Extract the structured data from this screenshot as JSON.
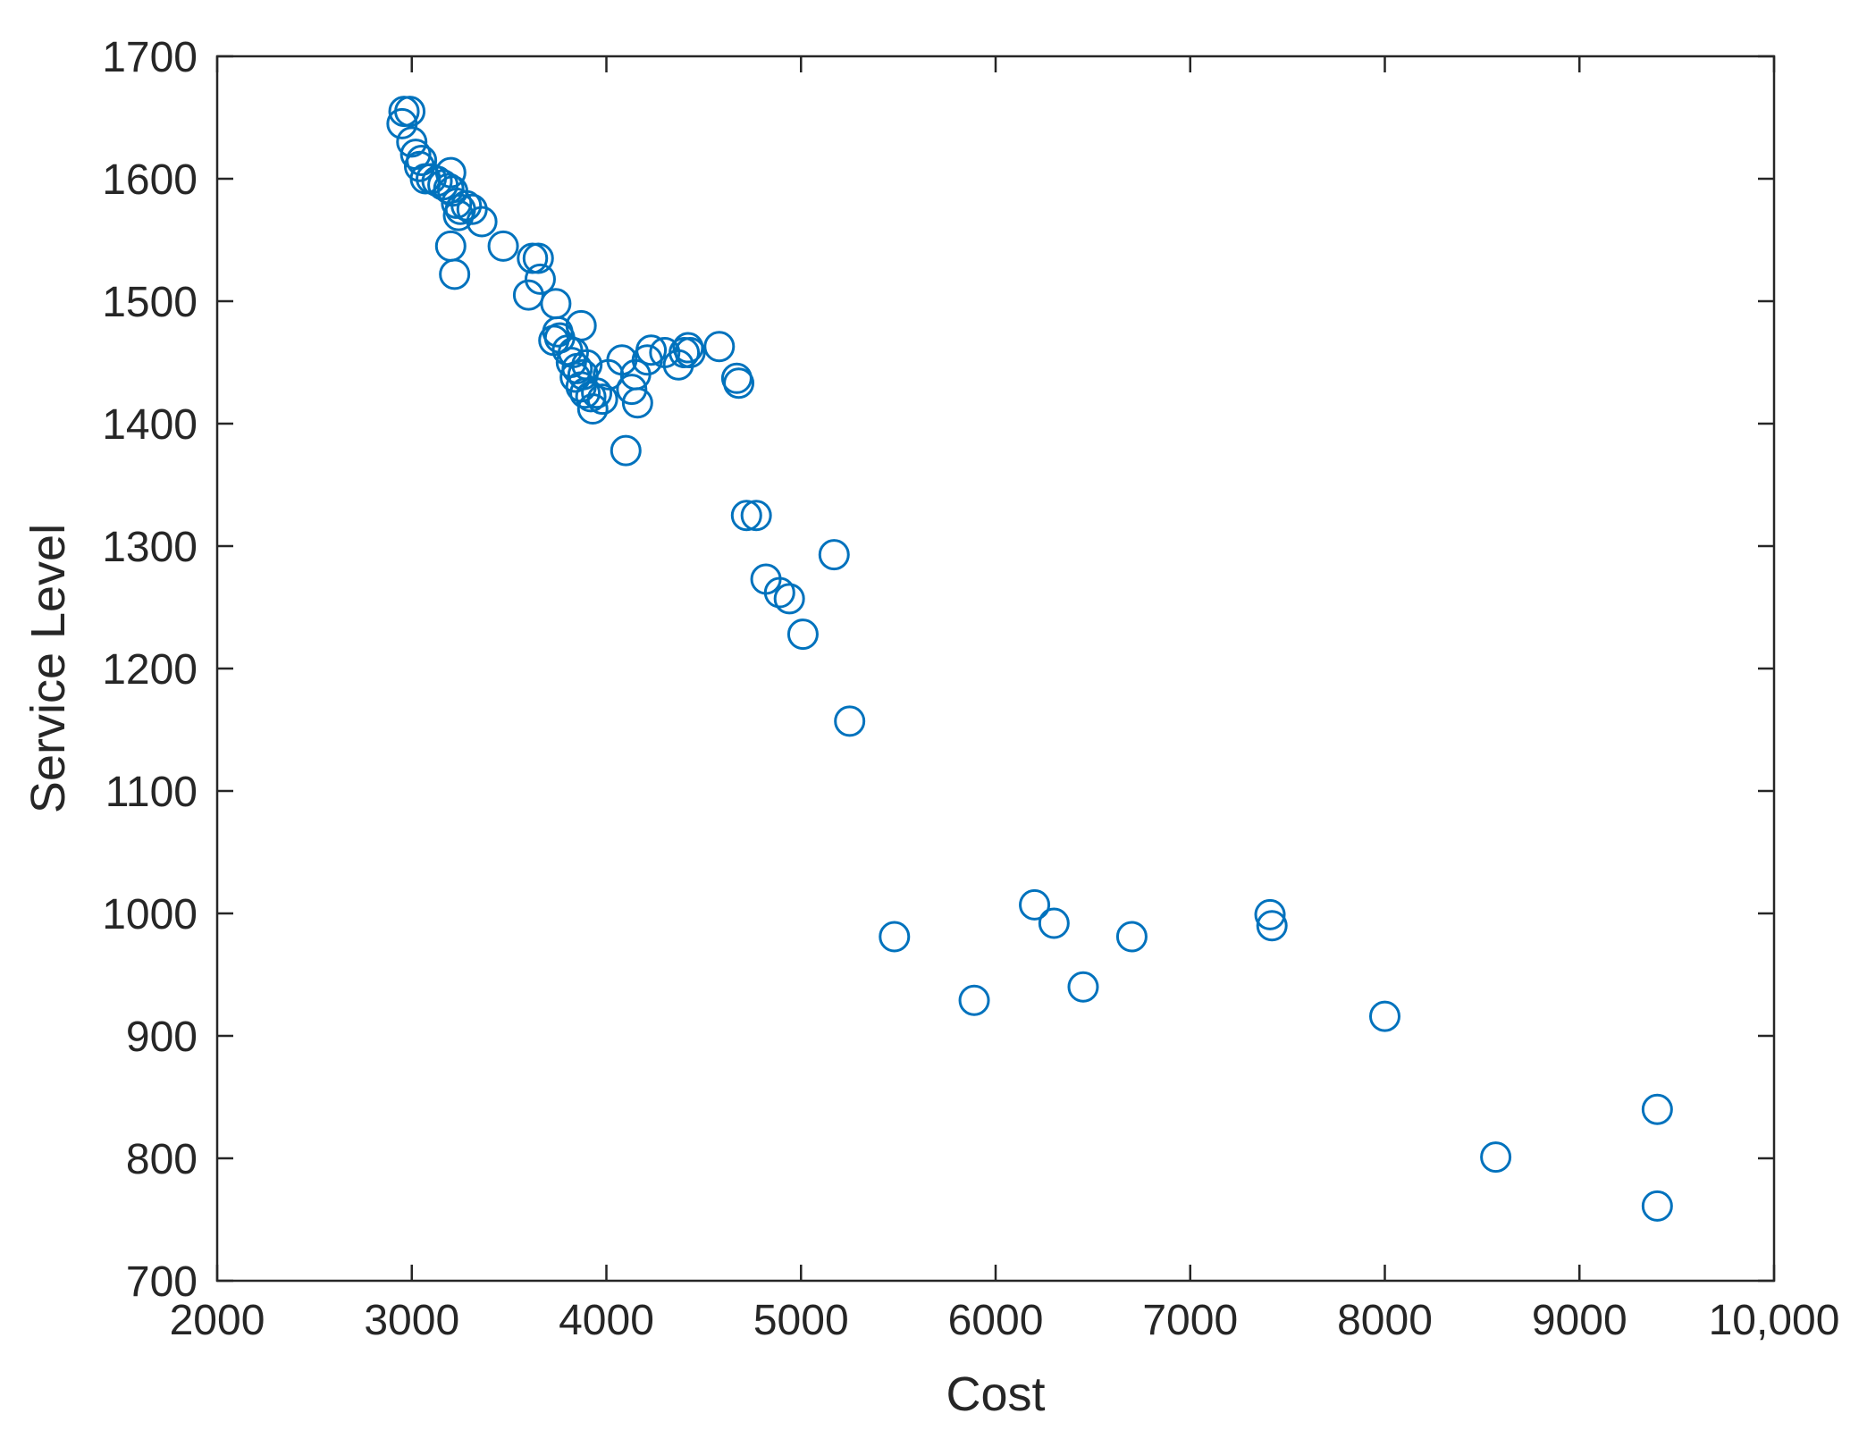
{
  "chart_data": {
    "type": "scatter",
    "title": "",
    "xlabel": "Cost",
    "ylabel": "Service Level",
    "xlim": [
      2000,
      10000
    ],
    "ylim": [
      700,
      1700
    ],
    "xticks": [
      2000,
      3000,
      4000,
      5000,
      6000,
      7000,
      8000,
      9000,
      10000
    ],
    "xtick_labels": [
      "2000",
      "3000",
      "4000",
      "5000",
      "6000",
      "7000",
      "8000",
      "9000",
      "10,000"
    ],
    "yticks": [
      700,
      800,
      900,
      1000,
      1100,
      1200,
      1300,
      1400,
      1500,
      1600,
      1700
    ],
    "ytick_labels": [
      "700",
      "800",
      "900",
      "1000",
      "1100",
      "1200",
      "1300",
      "1400",
      "1500",
      "1600",
      "1700"
    ],
    "grid": false,
    "marker": "open-circle",
    "color": "#0072BD",
    "axis_color": "#262626",
    "points": [
      {
        "x": 2960,
        "y": 1655
      },
      {
        "x": 2990,
        "y": 1655
      },
      {
        "x": 2950,
        "y": 1645
      },
      {
        "x": 3000,
        "y": 1630
      },
      {
        "x": 3020,
        "y": 1620
      },
      {
        "x": 3050,
        "y": 1615
      },
      {
        "x": 3040,
        "y": 1610
      },
      {
        "x": 3070,
        "y": 1600
      },
      {
        "x": 3100,
        "y": 1600
      },
      {
        "x": 3130,
        "y": 1598
      },
      {
        "x": 3160,
        "y": 1595
      },
      {
        "x": 3200,
        "y": 1605
      },
      {
        "x": 3190,
        "y": 1592
      },
      {
        "x": 3210,
        "y": 1590
      },
      {
        "x": 3230,
        "y": 1580
      },
      {
        "x": 3250,
        "y": 1575
      },
      {
        "x": 3240,
        "y": 1570
      },
      {
        "x": 3280,
        "y": 1578
      },
      {
        "x": 3310,
        "y": 1575
      },
      {
        "x": 3360,
        "y": 1565
      },
      {
        "x": 3200,
        "y": 1545
      },
      {
        "x": 3220,
        "y": 1522
      },
      {
        "x": 3470,
        "y": 1545
      },
      {
        "x": 3620,
        "y": 1535
      },
      {
        "x": 3650,
        "y": 1535
      },
      {
        "x": 3660,
        "y": 1518
      },
      {
        "x": 3600,
        "y": 1505
      },
      {
        "x": 3740,
        "y": 1498
      },
      {
        "x": 3750,
        "y": 1475
      },
      {
        "x": 3730,
        "y": 1468
      },
      {
        "x": 3760,
        "y": 1470
      },
      {
        "x": 3870,
        "y": 1480
      },
      {
        "x": 3800,
        "y": 1460
      },
      {
        "x": 3830,
        "y": 1458
      },
      {
        "x": 3820,
        "y": 1450
      },
      {
        "x": 3850,
        "y": 1445
      },
      {
        "x": 3900,
        "y": 1448
      },
      {
        "x": 3880,
        "y": 1440
      },
      {
        "x": 3840,
        "y": 1438
      },
      {
        "x": 3870,
        "y": 1430
      },
      {
        "x": 3890,
        "y": 1425
      },
      {
        "x": 3920,
        "y": 1422
      },
      {
        "x": 3950,
        "y": 1425
      },
      {
        "x": 3930,
        "y": 1412
      },
      {
        "x": 3980,
        "y": 1420
      },
      {
        "x": 4010,
        "y": 1440
      },
      {
        "x": 4080,
        "y": 1452
      },
      {
        "x": 4130,
        "y": 1428
      },
      {
        "x": 4150,
        "y": 1440
      },
      {
        "x": 4160,
        "y": 1417
      },
      {
        "x": 4100,
        "y": 1378
      },
      {
        "x": 4210,
        "y": 1452
      },
      {
        "x": 4230,
        "y": 1460
      },
      {
        "x": 4300,
        "y": 1458
      },
      {
        "x": 4370,
        "y": 1448
      },
      {
        "x": 4400,
        "y": 1458
      },
      {
        "x": 4420,
        "y": 1462
      },
      {
        "x": 4430,
        "y": 1458
      },
      {
        "x": 4580,
        "y": 1463
      },
      {
        "x": 4670,
        "y": 1437
      },
      {
        "x": 4680,
        "y": 1433
      },
      {
        "x": 4720,
        "y": 1325
      },
      {
        "x": 4770,
        "y": 1325
      },
      {
        "x": 5170,
        "y": 1293
      },
      {
        "x": 4820,
        "y": 1273
      },
      {
        "x": 4890,
        "y": 1262
      },
      {
        "x": 4940,
        "y": 1257
      },
      {
        "x": 5010,
        "y": 1228
      },
      {
        "x": 5250,
        "y": 1157
      },
      {
        "x": 5480,
        "y": 981
      },
      {
        "x": 5890,
        "y": 929
      },
      {
        "x": 6200,
        "y": 1007
      },
      {
        "x": 6300,
        "y": 992
      },
      {
        "x": 6450,
        "y": 940
      },
      {
        "x": 6700,
        "y": 981
      },
      {
        "x": 7410,
        "y": 999
      },
      {
        "x": 7420,
        "y": 990
      },
      {
        "x": 8000,
        "y": 916
      },
      {
        "x": 8570,
        "y": 801
      },
      {
        "x": 9400,
        "y": 840
      },
      {
        "x": 9400,
        "y": 761
      }
    ]
  }
}
